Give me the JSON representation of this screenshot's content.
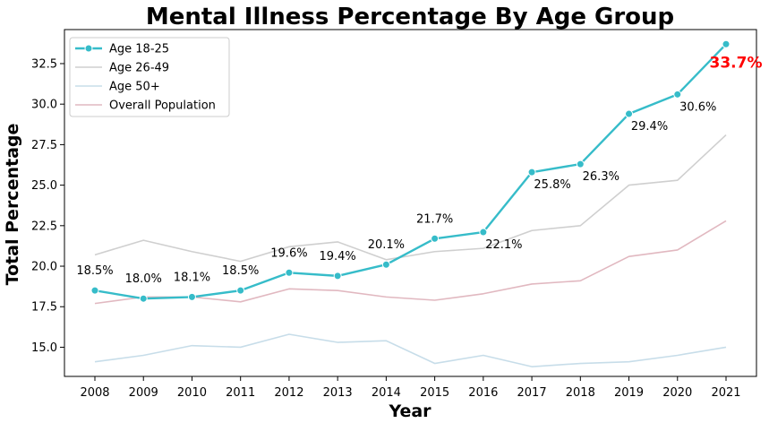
{
  "chart_data": {
    "type": "line",
    "title": "Mental Illness Percentage By Age Group",
    "xlabel": "Year",
    "ylabel": "Total Percentage",
    "x": [
      2008,
      2009,
      2010,
      2011,
      2012,
      2013,
      2014,
      2015,
      2016,
      2017,
      2018,
      2019,
      2020,
      2021
    ],
    "ylim": [
      13.2,
      34.6
    ],
    "yticks": [
      15.0,
      17.5,
      20.0,
      22.5,
      25.0,
      27.5,
      30.0,
      32.5
    ],
    "ytick_labels": [
      "15.0",
      "17.5",
      "20.0",
      "22.5",
      "25.0",
      "27.5",
      "30.0",
      "32.5"
    ],
    "grid": false,
    "legend_position": "top-left",
    "series": [
      {
        "name": "Age 18-25",
        "color": "#36bcc9",
        "markers": true,
        "values": [
          18.5,
          18.0,
          18.1,
          18.5,
          19.6,
          19.4,
          20.1,
          21.7,
          22.1,
          25.8,
          26.3,
          29.4,
          30.6,
          33.7
        ],
        "labels": [
          "18.5%",
          "18.0%",
          "18.1%",
          "18.5%",
          "19.6%",
          "19.4%",
          "20.1%",
          "21.7%",
          "22.1%",
          "25.8%",
          "26.3%",
          "29.4%",
          "30.6%",
          "33.7%"
        ]
      },
      {
        "name": "Age 26-49",
        "color": "#cfcfcf",
        "markers": false,
        "values": [
          20.7,
          21.6,
          20.9,
          20.3,
          21.2,
          21.5,
          20.4,
          20.9,
          21.1,
          22.2,
          22.5,
          25.0,
          25.3,
          28.1
        ]
      },
      {
        "name": "Age 50+",
        "color": "#c7dde9",
        "markers": false,
        "values": [
          14.1,
          14.5,
          15.1,
          15.0,
          15.8,
          15.3,
          15.4,
          14.0,
          14.5,
          13.8,
          14.0,
          14.1,
          14.5,
          15.0
        ]
      },
      {
        "name": "Overall Population",
        "color": "#e1b8c0",
        "markers": false,
        "values": [
          17.7,
          18.1,
          18.1,
          17.8,
          18.6,
          18.5,
          18.1,
          17.9,
          18.3,
          18.9,
          19.1,
          20.6,
          21.0,
          22.8
        ]
      }
    ],
    "highlight_label_color": "#ff0000"
  }
}
